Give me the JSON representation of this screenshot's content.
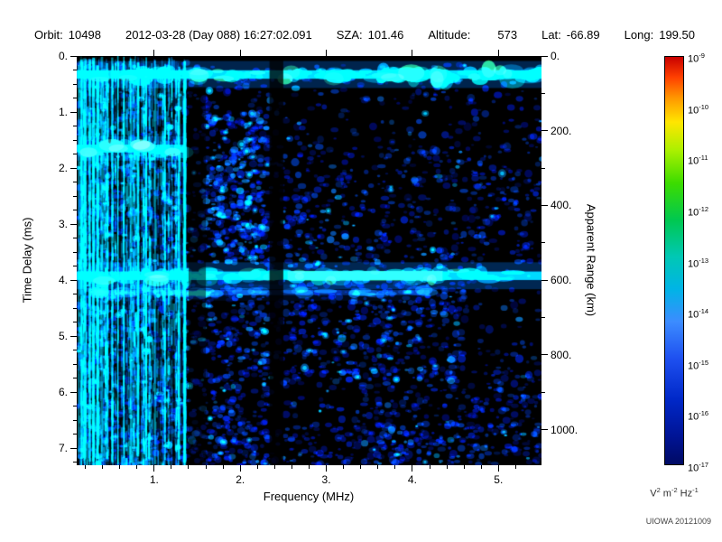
{
  "header": {
    "items": [
      {
        "label": "Orbit:",
        "value": "10498"
      },
      {
        "label": "",
        "value": "2012-03-28 (Day 088) 16:27:02.091"
      },
      {
        "label": "SZA:",
        "value": "101.46"
      },
      {
        "label": "Altitude:",
        "value": "573"
      },
      {
        "label": "Lat:",
        "value": "-66.89"
      },
      {
        "label": "Long:",
        "value": "199.50"
      }
    ]
  },
  "footer": {
    "credit": "UIOWA 20121009"
  },
  "chart_data": {
    "type": "heatmap",
    "xlabel": "Frequency (MHz)",
    "ylabel": "Time Delay (ms)",
    "ylabel_right": "Apparent Range (km)",
    "x_range_mhz": [
      0.1,
      5.5
    ],
    "y_range_ms": [
      0.0,
      7.3
    ],
    "km_per_ms": 150,
    "x_ticks": {
      "values": [
        1,
        2,
        3,
        4,
        5
      ],
      "labels": [
        "1.",
        "2.",
        "3.",
        "4.",
        "5."
      ]
    },
    "y_ticks_left": {
      "values": [
        0,
        1,
        2,
        3,
        4,
        5,
        6,
        7
      ],
      "labels": [
        "0.",
        "1.",
        "2.",
        "3.",
        "4.",
        "5.",
        "6.",
        "7."
      ]
    },
    "y_ticks_right": {
      "values_km": [
        0,
        200,
        400,
        600,
        800,
        1000
      ],
      "labels": [
        "0.",
        "200.",
        "400.",
        "600.",
        "800.",
        "1000."
      ]
    },
    "colorbar": {
      "scale": "log",
      "tick_base": "10",
      "tick_exponents": [
        "-9",
        "-10",
        "-11",
        "-12",
        "-13",
        "-14",
        "-15",
        "-16",
        "-17"
      ],
      "unit_parts": [
        {
          "base": "V",
          "exp": "2"
        },
        {
          "base": "m",
          "exp": "-2"
        },
        {
          "base": "Hz",
          "exp": "-1"
        }
      ],
      "gradient_stops": [
        [
          0.0,
          "#c80000"
        ],
        [
          0.05,
          "#ff4000"
        ],
        [
          0.1,
          "#ff9600"
        ],
        [
          0.16,
          "#ffe600"
        ],
        [
          0.23,
          "#aaf000"
        ],
        [
          0.31,
          "#3cdc00"
        ],
        [
          0.4,
          "#00c850"
        ],
        [
          0.49,
          "#00c8b4"
        ],
        [
          0.57,
          "#00b4e6"
        ],
        [
          0.65,
          "#3c8cff"
        ],
        [
          0.74,
          "#1e50f0"
        ],
        [
          0.84,
          "#0028c8"
        ],
        [
          0.93,
          "#001496"
        ],
        [
          1.0,
          "#000a64"
        ]
      ]
    },
    "features": {
      "top_echo_band_ms": 0.33,
      "partial_band_ms": 1.65,
      "partial_band_max_mhz": 1.36,
      "strong_band_ms": 3.92,
      "strong_band_apparent_range_km": 588,
      "ionospheric_striations_mhz": [
        0.1,
        1.36
      ],
      "attenuation_gap_mhz": [
        2.34,
        2.5
      ]
    },
    "render": {
      "seed": 20121009,
      "plot_bg": "#000000",
      "speckle": {
        "base_colors": [
          "#000d8c",
          "#0016b4",
          "#0022cc",
          "#012898",
          "#0240c8",
          "#001070"
        ],
        "bright_colors": [
          "#0a6ce0",
          "#0c93ff",
          "#00b4ff"
        ],
        "cyan_color": "#00e6ff"
      },
      "speckle_regions": [
        {
          "f": [
            0.1,
            5.5
          ],
          "t": [
            0.15,
            7.3
          ],
          "count": 1500,
          "bright": 0.07
        },
        {
          "f": [
            0.1,
            1.5
          ],
          "t": [
            0.1,
            7.3
          ],
          "count": 430,
          "bright": 0.3
        },
        {
          "f": [
            1.55,
            2.33
          ],
          "t": [
            1.0,
            3.7
          ],
          "count": 430,
          "bright": 0.25
        },
        {
          "f": [
            1.55,
            2.33
          ],
          "t": [
            4.1,
            7.3
          ],
          "count": 250,
          "bright": 0.15
        },
        {
          "f": [
            2.5,
            4.6
          ],
          "t": [
            4.05,
            5.8
          ],
          "count": 300,
          "bright": 0.12
        },
        {
          "f": [
            2.5,
            5.5
          ],
          "t": [
            1.6,
            3.8
          ],
          "count": 250,
          "bright": 0.08
        },
        {
          "f": [
            3.3,
            5.5
          ],
          "t": [
            5.6,
            7.3
          ],
          "count": 210,
          "bright": 0.08
        },
        {
          "f": [
            0.1,
            5.5
          ],
          "t": [
            6.6,
            7.3
          ],
          "count": 180,
          "bright": 0.1
        }
      ],
      "striations": {
        "f_min": 0.1,
        "f_max": 1.36,
        "count": 230,
        "seg_colors": [
          "#00c8ff",
          "#0090ff",
          "#0055dd",
          "#00e8ff"
        ],
        "strong_color": "#00e0ff",
        "strong_lines": [
          0.115,
          0.14,
          0.17,
          0.2,
          0.24,
          0.28,
          0.33,
          0.38,
          0.44,
          0.5,
          0.57,
          0.64,
          0.72,
          0.8,
          0.9,
          1.0,
          1.12,
          1.28,
          1.34
        ]
      },
      "bands": [
        {
          "t": 0.33,
          "half_h_ms": 0.1,
          "f_from": 0.1,
          "f_to": 5.5,
          "core": "#00dcff",
          "core_alpha": 0.85,
          "accents": [
            "#3cff78",
            "#00ffd2",
            "#00baff"
          ],
          "glow": "rgba(0,120,255,0.30)",
          "thick_from": 3.6
        },
        {
          "t": 1.65,
          "half_h_ms": 0.09,
          "f_from": 0.1,
          "f_to": 1.36,
          "core": "#00dcff",
          "core_alpha": 0.8,
          "accents": [
            "#64ffa0",
            "#00baff"
          ],
          "glow": "rgba(0,120,255,0.25)"
        },
        {
          "t": 3.92,
          "half_h_ms": 0.1,
          "f_from": 0.1,
          "f_to": 5.5,
          "core": "#00d2ff",
          "core_alpha": 0.85,
          "green_from": 2.55,
          "green_to": 4.35,
          "green": "#46ff50",
          "accents": [
            "#3cff78",
            "#00ffd2",
            "#00baff"
          ],
          "glow": "rgba(0,120,255,0.32)"
        },
        {
          "t": 4.22,
          "half_h_ms": 0.06,
          "f_from": 0.3,
          "f_to": 4.2,
          "core": "#0a50dc",
          "core_alpha": 0.45,
          "accents": [
            "#0a78e6"
          ],
          "glow": "rgba(0,60,180,0.15)"
        }
      ],
      "gaps": [
        {
          "f_from": 2.34,
          "f_to": 2.5,
          "alpha": 0.78,
          "t_from": 0.0
        },
        {
          "f_from": 1.4,
          "f_to": 1.6,
          "alpha": 0.5,
          "t_from": 0.55
        }
      ]
    }
  }
}
